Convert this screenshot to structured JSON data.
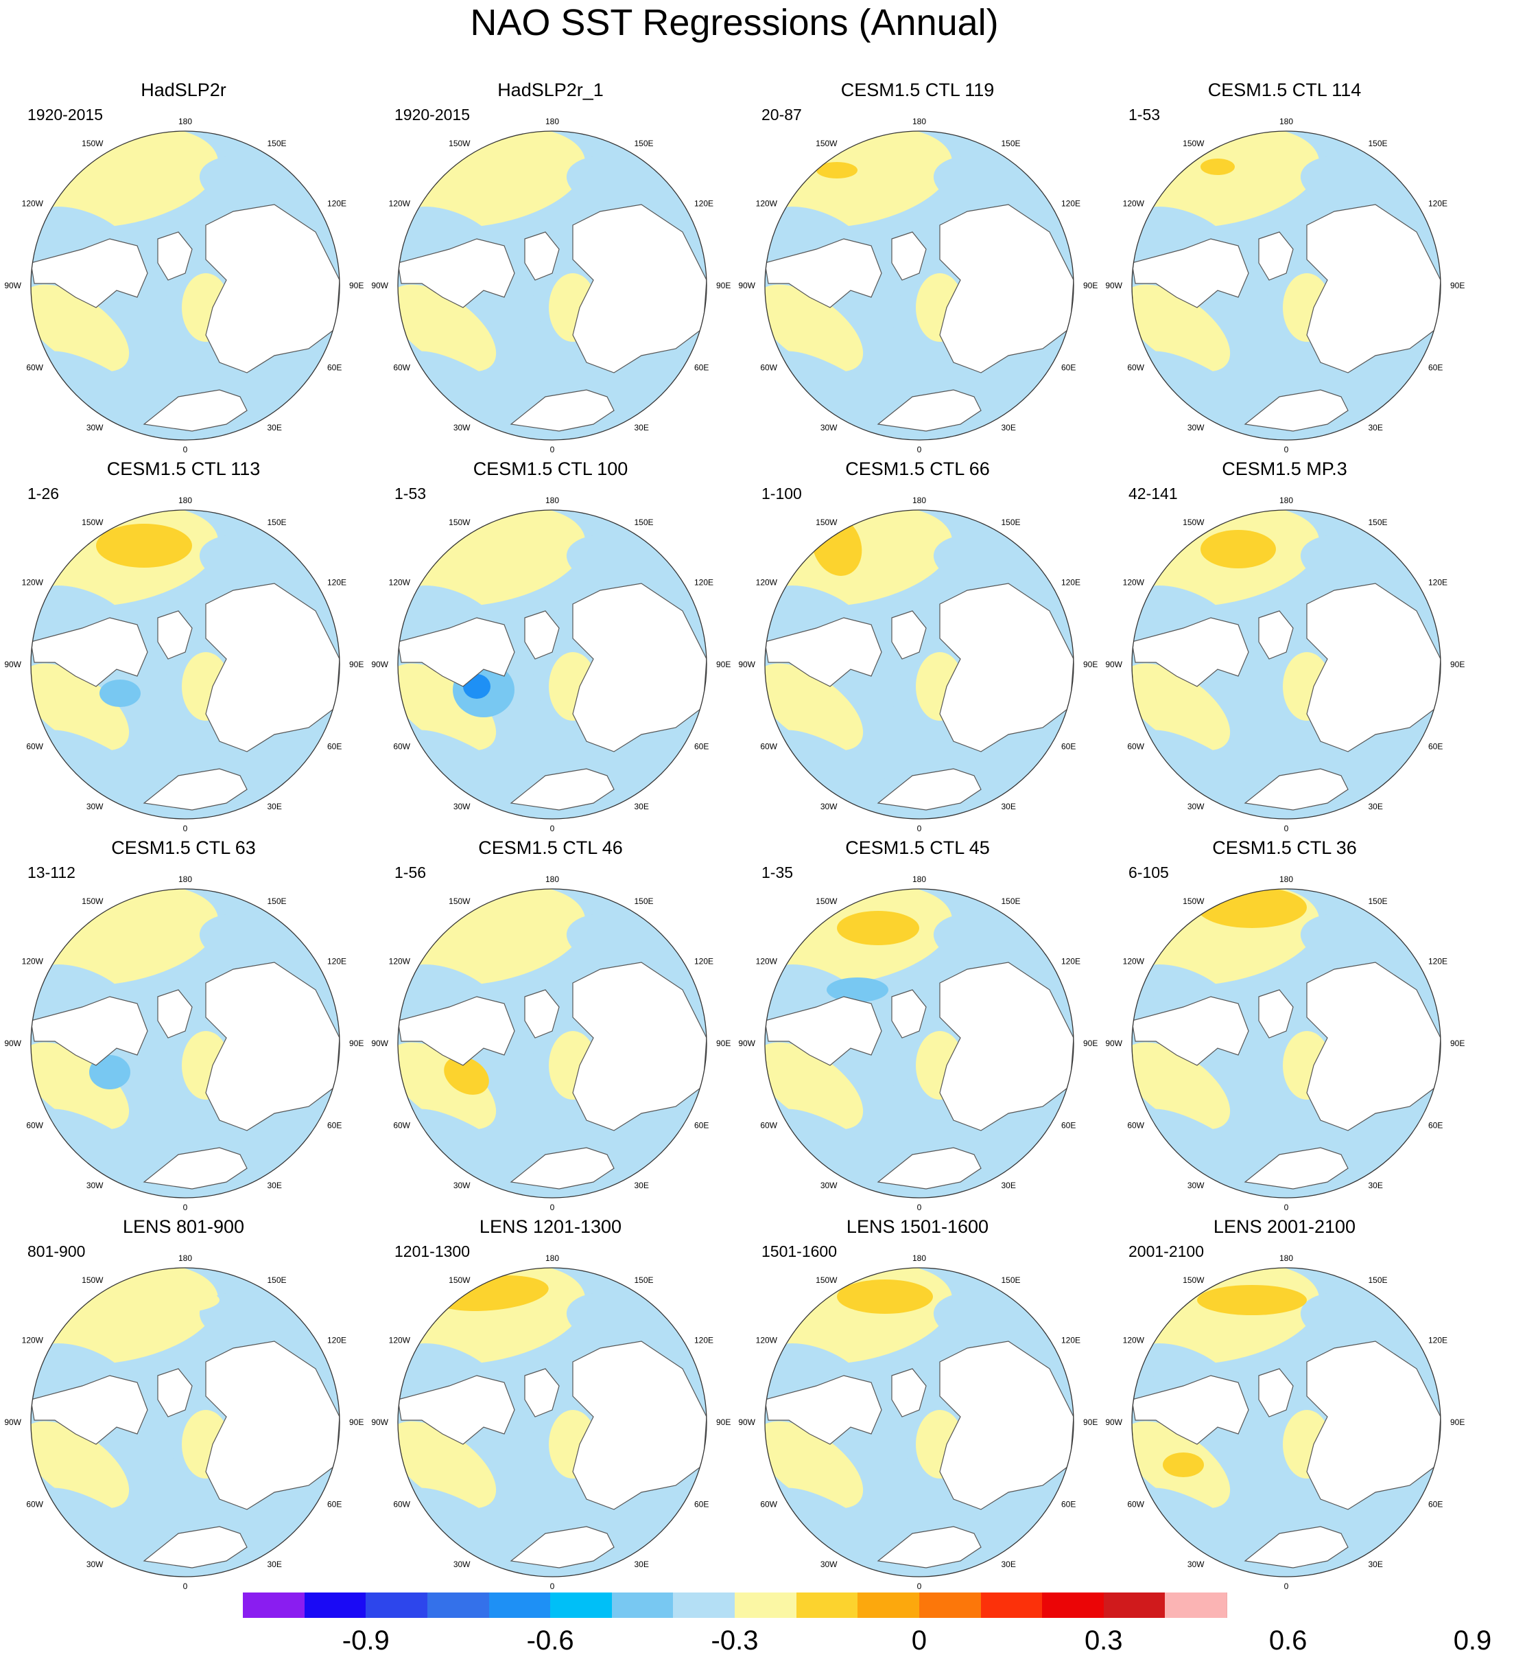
{
  "title": "NAO SST Regressions (Annual)",
  "longitude_labels": [
    "180",
    "150E",
    "120E",
    "90E",
    "60E",
    "30E",
    "0",
    "30W",
    "60W",
    "90W",
    "120W",
    "150W"
  ],
  "panels": [
    {
      "title": "HadSLP2r",
      "period": "1920-2015"
    },
    {
      "title": "HadSLP2r_1",
      "period": "1920-2015"
    },
    {
      "title": "CESM1.5 CTL 119",
      "period": "20-87"
    },
    {
      "title": "CESM1.5 CTL 114",
      "period": "1-53"
    },
    {
      "title": "CESM1.5 CTL 113",
      "period": "1-26"
    },
    {
      "title": "CESM1.5 CTL 100",
      "period": "1-53"
    },
    {
      "title": "CESM1.5 CTL 66",
      "period": "1-100"
    },
    {
      "title": "CESM1.5 MP.3",
      "period": "42-141"
    },
    {
      "title": "CESM1.5 CTL 63",
      "period": "13-112"
    },
    {
      "title": "CESM1.5 CTL 46",
      "period": "1-56"
    },
    {
      "title": "CESM1.5 CTL 45",
      "period": "1-35"
    },
    {
      "title": "CESM1.5 CTL 36",
      "period": "6-105"
    },
    {
      "title": "LENS 801-900",
      "period": "801-900"
    },
    {
      "title": "LENS 1201-1300",
      "period": "1201-1300"
    },
    {
      "title": "LENS 1501-1600",
      "period": "1501-1600"
    },
    {
      "title": "LENS 2001-2100",
      "period": "2001-2100"
    }
  ],
  "colorbar": {
    "colors": [
      "#8a1df0",
      "#1a0af5",
      "#2d46ec",
      "#3471ea",
      "#1e90f5",
      "#00bff7",
      "#78c8f2",
      "#b4dff5",
      "#fbf7a4",
      "#fcd32e",
      "#fca80d",
      "#fc770a",
      "#fc310a",
      "#eb0506",
      "#d01a1c",
      "#fbb4b4"
    ],
    "tick_labels": [
      "-0.9",
      "-0.6",
      "-0.3",
      "0",
      "0.3",
      "0.6",
      "0.9"
    ]
  },
  "palette": {
    "ocean_neutral_positive": "#fbf7a4",
    "ocean_neutral_negative": "#b4dff5",
    "weak_negative": "#78c8f2",
    "mid_negative": "#1e90f5",
    "weak_positive": "#fcd32e",
    "mid_positive": "#fca80d",
    "land": "#ffffff",
    "coastline": "#555555"
  }
}
